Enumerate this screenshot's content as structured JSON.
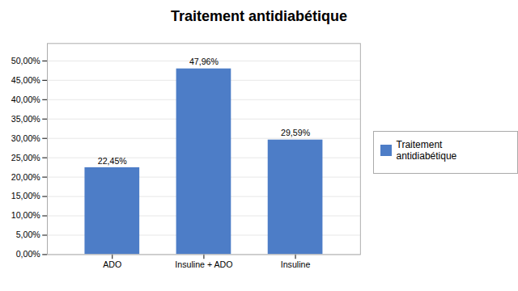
{
  "chart_data": {
    "type": "bar",
    "title": "Traitement antidiabétique",
    "categories": [
      "ADO",
      "Insuline + ADO",
      "Insuline"
    ],
    "series": [
      {
        "name": "Traitement antidiabétique",
        "color": "#4d7dc7",
        "values": [
          0.2245,
          0.4796,
          0.2959
        ],
        "value_labels": [
          "22,45%",
          "47,96%",
          "29,59%"
        ]
      }
    ],
    "data_labels": true,
    "ylim": [
      0,
      0.545
    ],
    "yticks": [
      {
        "value": 0.0,
        "label": "0,00%"
      },
      {
        "value": 0.05,
        "label": "5,00%"
      },
      {
        "value": 0.1,
        "label": "10,00%"
      },
      {
        "value": 0.15,
        "label": "15,00%"
      },
      {
        "value": 0.2,
        "label": "20,00%"
      },
      {
        "value": 0.25,
        "label": "25,00%"
      },
      {
        "value": 0.3,
        "label": "30,00%"
      },
      {
        "value": 0.35,
        "label": "35,00%"
      },
      {
        "value": 0.4,
        "label": "40,00%"
      },
      {
        "value": 0.45,
        "label": "45,00%"
      },
      {
        "value": 0.5,
        "label": "50,00%"
      }
    ],
    "grid": true,
    "legend": "right"
  }
}
